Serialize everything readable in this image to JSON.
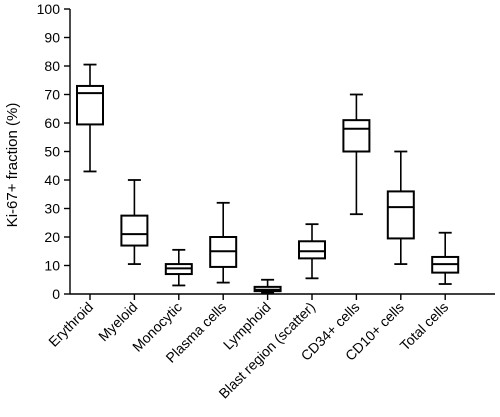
{
  "chart_data": {
    "type": "boxplot",
    "ylabel": "Ki-67+ fraction (%)",
    "ylim": [
      0,
      100
    ],
    "yticks": [
      0,
      10,
      20,
      30,
      40,
      50,
      60,
      70,
      80,
      90,
      100
    ],
    "categories": [
      "Erythroid",
      "Myeloid",
      "Monocytic",
      "Plasma cells",
      "Lymphoid",
      "Blast region (scatter)",
      "CD34+ cells",
      "CD10+ cells",
      "Total cells"
    ],
    "boxes": [
      {
        "min": 43,
        "q1": 59.5,
        "median": 70.5,
        "q3": 73,
        "max": 80.5
      },
      {
        "min": 10.5,
        "q1": 17,
        "median": 21,
        "q3": 27.5,
        "max": 40
      },
      {
        "min": 3,
        "q1": 7,
        "median": 9,
        "q3": 10.5,
        "max": 15.5
      },
      {
        "min": 4,
        "q1": 9.5,
        "median": 15,
        "q3": 20,
        "max": 32
      },
      {
        "min": 0.5,
        "q1": 1,
        "median": 1.5,
        "q3": 2.5,
        "max": 5
      },
      {
        "min": 5.5,
        "q1": 12.5,
        "median": 15,
        "q3": 18.5,
        "max": 24.5
      },
      {
        "min": 28,
        "q1": 50,
        "median": 58,
        "q3": 61,
        "max": 70
      },
      {
        "min": 10.5,
        "q1": 19.5,
        "median": 30.5,
        "q3": 36,
        "max": 50
      },
      {
        "min": 3.5,
        "q1": 7.5,
        "median": 10.5,
        "q3": 13,
        "max": 21.5
      }
    ]
  }
}
